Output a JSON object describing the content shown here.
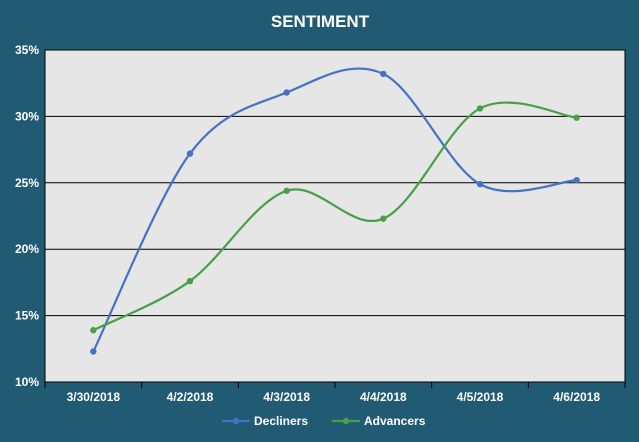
{
  "chart_data": {
    "type": "line",
    "title": "SENTIMENT",
    "xlabel": "",
    "ylabel": "",
    "categories": [
      "3/30/2018",
      "4/2/2018",
      "4/3/2018",
      "4/4/2018",
      "4/5/2018",
      "4/6/2018"
    ],
    "y_ticks": [
      "10%",
      "15%",
      "20%",
      "25%",
      "30%",
      "35%"
    ],
    "ylim": [
      0.1,
      0.35
    ],
    "grid": true,
    "smooth": true,
    "legend_position": "bottom",
    "series": [
      {
        "name": "Decliners",
        "color": "#4472c4",
        "values": [
          0.123,
          0.272,
          0.318,
          0.332,
          0.249,
          0.252
        ]
      },
      {
        "name": "Advancers",
        "color": "#46a046",
        "values": [
          0.139,
          0.176,
          0.244,
          0.223,
          0.306,
          0.299
        ]
      }
    ],
    "colors": {
      "background": "#215a73",
      "plot_area": "#e6e6e6",
      "gridline": "#000000",
      "text": "#ffffff"
    }
  }
}
